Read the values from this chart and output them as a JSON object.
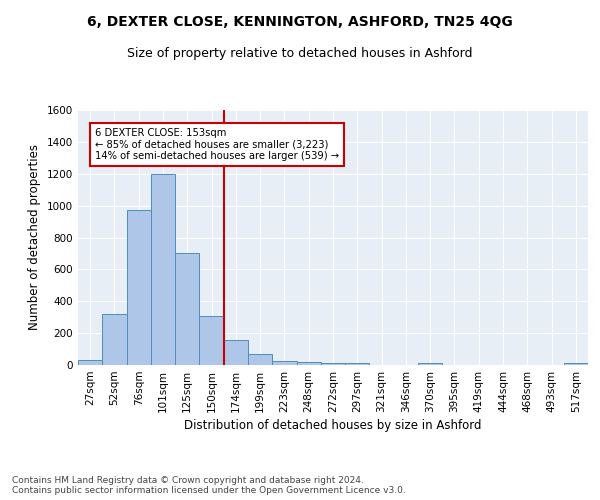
{
  "title1": "6, DEXTER CLOSE, KENNINGTON, ASHFORD, TN25 4QG",
  "title2": "Size of property relative to detached houses in Ashford",
  "xlabel": "Distribution of detached houses by size in Ashford",
  "ylabel": "Number of detached properties",
  "footer1": "Contains HM Land Registry data © Crown copyright and database right 2024.",
  "footer2": "Contains public sector information licensed under the Open Government Licence v3.0.",
  "bar_labels": [
    "27sqm",
    "52sqm",
    "76sqm",
    "101sqm",
    "125sqm",
    "150sqm",
    "174sqm",
    "199sqm",
    "223sqm",
    "248sqm",
    "272sqm",
    "297sqm",
    "321sqm",
    "346sqm",
    "370sqm",
    "395sqm",
    "419sqm",
    "444sqm",
    "468sqm",
    "493sqm",
    "517sqm"
  ],
  "bar_values": [
    30,
    320,
    970,
    1200,
    700,
    310,
    155,
    70,
    28,
    20,
    15,
    13,
    0,
    0,
    12,
    0,
    0,
    0,
    0,
    0,
    12
  ],
  "bar_color": "#aec6e8",
  "bar_edge_color": "#4c8fbd",
  "vline_x": 5.5,
  "vline_color": "#cc0000",
  "annotation_text": "6 DEXTER CLOSE: 153sqm\n← 85% of detached houses are smaller (3,223)\n14% of semi-detached houses are larger (539) →",
  "annotation_box_color": "#ffffff",
  "annotation_box_edge": "#cc0000",
  "ylim": [
    0,
    1600
  ],
  "yticks": [
    0,
    200,
    400,
    600,
    800,
    1000,
    1200,
    1400,
    1600
  ],
  "background_color": "#e8eef5",
  "grid_color": "#ffffff",
  "title1_fontsize": 10,
  "title2_fontsize": 9,
  "axis_label_fontsize": 8.5,
  "tick_fontsize": 7.5,
  "footer_fontsize": 6.5
}
